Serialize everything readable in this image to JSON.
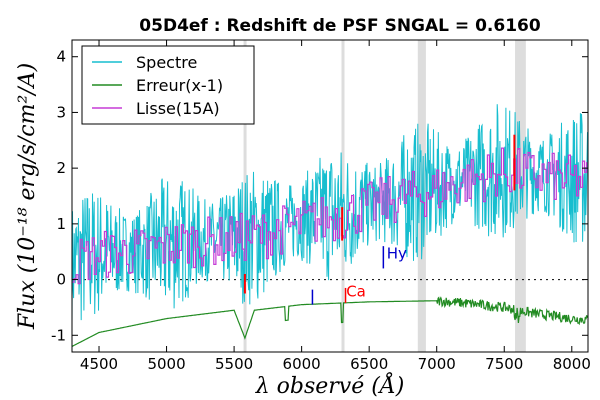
{
  "chart_data": {
    "type": "line",
    "title": "05D4ef : Redshift de PSF SNGAL = 0.6160",
    "xlabel": "λ observé (Å)",
    "ylabel": "Flux (10⁻¹⁸ erg/s/cm²/A)",
    "xlim": [
      4300,
      8120
    ],
    "ylim": [
      -1.3,
      4.3
    ],
    "xticks": [
      4500,
      5000,
      5500,
      6000,
      6500,
      7000,
      7500,
      8000
    ],
    "yticks": [
      -1,
      0,
      1,
      2,
      3,
      4
    ],
    "legend_position": "top-left",
    "series": [
      {
        "name": "Spectre",
        "color": "#17becf",
        "x": [
          4300,
          4500,
          4800,
          5100,
          5400,
          5700,
          6000,
          6300,
          6600,
          6900,
          7200,
          7500,
          7800,
          8120
        ],
        "values": [
          0.3,
          0.5,
          0.5,
          0.7,
          0.7,
          0.8,
          1.1,
          1.2,
          1.4,
          1.6,
          1.8,
          2.0,
          1.9,
          1.8
        ]
      },
      {
        "name": "Erreur(x-1)",
        "color": "#228b22",
        "x": [
          4300,
          4500,
          5000,
          5500,
          5580,
          5650,
          6000,
          6300,
          6500,
          7000,
          7200,
          7500,
          7700,
          8000,
          8120
        ],
        "values": [
          -1.2,
          -0.95,
          -0.7,
          -0.55,
          -1.05,
          -0.55,
          -0.45,
          -0.42,
          -0.4,
          -0.38,
          -0.42,
          -0.5,
          -0.6,
          -0.7,
          -0.72
        ]
      },
      {
        "name": "Lisse(15A)",
        "color": "#c53cd6",
        "x": [
          4300,
          4500,
          4800,
          5100,
          5400,
          5700,
          6000,
          6300,
          6600,
          6900,
          7200,
          7500,
          7800,
          8120
        ],
        "values": [
          0.3,
          0.45,
          0.5,
          0.65,
          0.7,
          0.8,
          1.0,
          1.15,
          1.4,
          1.55,
          1.75,
          1.95,
          1.85,
          1.75
        ]
      }
    ],
    "shaded_bands": [
      [
        5570,
        5590
      ],
      [
        6295,
        6305
      ],
      [
        6860,
        6920
      ],
      [
        7580,
        7660
      ]
    ],
    "annotations": [
      {
        "text": "Hy",
        "x": 6630,
        "y": 0.38,
        "color": "#0000cc"
      },
      {
        "text": "Ca",
        "x": 6330,
        "y": -0.3,
        "color": "#ff0000"
      }
    ]
  }
}
